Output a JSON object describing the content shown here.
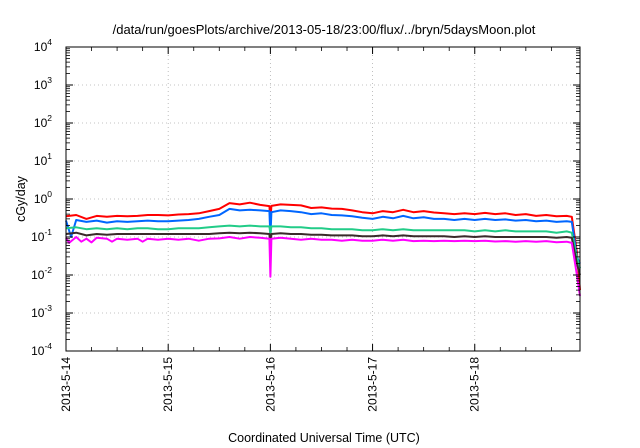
{
  "chart_data": {
    "type": "line",
    "title": "/data/run/goesPlots/archive/2013-05-18/23:00/flux/../bryn/5daysMoon.plot",
    "xlabel": "Coordinated Universal Time (UTC)",
    "ylabel": "cGy/day",
    "y_scale": "log",
    "ylim": [
      0.0001,
      10000
    ],
    "y_ticks": [
      {
        "base": "10",
        "exp": "4",
        "value": 10000
      },
      {
        "base": "10",
        "exp": "3",
        "value": 1000
      },
      {
        "base": "10",
        "exp": "2",
        "value": 100
      },
      {
        "base": "10",
        "exp": "1",
        "value": 10
      },
      {
        "base": "10",
        "exp": "0",
        "value": 1
      },
      {
        "base": "10",
        "exp": "-1",
        "value": 0.1
      },
      {
        "base": "10",
        "exp": "-2",
        "value": 0.01
      },
      {
        "base": "10",
        "exp": "-3",
        "value": 0.001
      },
      {
        "base": "10",
        "exp": "-4",
        "value": 0.0001
      }
    ],
    "x_unit": "days",
    "xlim": [
      0,
      5.03
    ],
    "x_ticks": [
      {
        "label": "2013-5-14",
        "value": 0
      },
      {
        "label": "2013-5-15",
        "value": 1
      },
      {
        "label": "2013-5-16",
        "value": 2
      },
      {
        "label": "2013-5-17",
        "value": 3
      },
      {
        "label": "2013-5-18",
        "value": 4
      }
    ],
    "grid": true,
    "series": [
      {
        "color": "#ff0000",
        "points": [
          [
            0,
            0.35
          ],
          [
            0.1,
            0.38
          ],
          [
            0.2,
            0.3
          ],
          [
            0.3,
            0.36
          ],
          [
            0.4,
            0.34
          ],
          [
            0.5,
            0.36
          ],
          [
            0.6,
            0.35
          ],
          [
            0.7,
            0.36
          ],
          [
            0.8,
            0.38
          ],
          [
            0.9,
            0.38
          ],
          [
            1.0,
            0.37
          ],
          [
            1.1,
            0.39
          ],
          [
            1.2,
            0.4
          ],
          [
            1.3,
            0.42
          ],
          [
            1.4,
            0.48
          ],
          [
            1.5,
            0.55
          ],
          [
            1.6,
            0.78
          ],
          [
            1.7,
            0.72
          ],
          [
            1.8,
            0.8
          ],
          [
            1.9,
            0.7
          ],
          [
            1.99,
            0.65
          ],
          [
            2.0,
            0.28
          ],
          [
            2.01,
            0.66
          ],
          [
            2.1,
            0.72
          ],
          [
            2.2,
            0.7
          ],
          [
            2.3,
            0.68
          ],
          [
            2.4,
            0.58
          ],
          [
            2.5,
            0.6
          ],
          [
            2.6,
            0.56
          ],
          [
            2.7,
            0.55
          ],
          [
            2.8,
            0.5
          ],
          [
            2.9,
            0.45
          ],
          [
            3.0,
            0.42
          ],
          [
            3.1,
            0.48
          ],
          [
            3.2,
            0.45
          ],
          [
            3.3,
            0.52
          ],
          [
            3.4,
            0.45
          ],
          [
            3.5,
            0.48
          ],
          [
            3.6,
            0.44
          ],
          [
            3.7,
            0.42
          ],
          [
            3.8,
            0.4
          ],
          [
            3.9,
            0.42
          ],
          [
            4.0,
            0.4
          ],
          [
            4.1,
            0.43
          ],
          [
            4.2,
            0.4
          ],
          [
            4.3,
            0.42
          ],
          [
            4.4,
            0.38
          ],
          [
            4.5,
            0.4
          ],
          [
            4.6,
            0.36
          ],
          [
            4.7,
            0.38
          ],
          [
            4.8,
            0.35
          ],
          [
            4.9,
            0.36
          ],
          [
            4.95,
            0.34
          ],
          [
            5.0,
            0.04
          ],
          [
            5.03,
            0.004
          ]
        ]
      },
      {
        "color": "#0066ff",
        "points": [
          [
            0,
            0.27
          ],
          [
            0.05,
            0.1
          ],
          [
            0.1,
            0.28
          ],
          [
            0.2,
            0.25
          ],
          [
            0.3,
            0.27
          ],
          [
            0.4,
            0.24
          ],
          [
            0.5,
            0.26
          ],
          [
            0.6,
            0.25
          ],
          [
            0.7,
            0.26
          ],
          [
            0.8,
            0.27
          ],
          [
            0.9,
            0.26
          ],
          [
            1.0,
            0.26
          ],
          [
            1.1,
            0.27
          ],
          [
            1.2,
            0.28
          ],
          [
            1.3,
            0.3
          ],
          [
            1.4,
            0.34
          ],
          [
            1.5,
            0.38
          ],
          [
            1.6,
            0.55
          ],
          [
            1.7,
            0.5
          ],
          [
            1.8,
            0.52
          ],
          [
            1.9,
            0.5
          ],
          [
            1.99,
            0.48
          ],
          [
            2.0,
            0.1
          ],
          [
            2.01,
            0.45
          ],
          [
            2.1,
            0.5
          ],
          [
            2.2,
            0.48
          ],
          [
            2.3,
            0.45
          ],
          [
            2.4,
            0.4
          ],
          [
            2.5,
            0.42
          ],
          [
            2.6,
            0.38
          ],
          [
            2.7,
            0.37
          ],
          [
            2.8,
            0.35
          ],
          [
            2.9,
            0.32
          ],
          [
            3.0,
            0.3
          ],
          [
            3.1,
            0.34
          ],
          [
            3.2,
            0.31
          ],
          [
            3.3,
            0.36
          ],
          [
            3.4,
            0.31
          ],
          [
            3.5,
            0.33
          ],
          [
            3.6,
            0.3
          ],
          [
            3.7,
            0.3
          ],
          [
            3.8,
            0.28
          ],
          [
            3.9,
            0.3
          ],
          [
            4.0,
            0.28
          ],
          [
            4.1,
            0.3
          ],
          [
            4.2,
            0.28
          ],
          [
            4.3,
            0.29
          ],
          [
            4.4,
            0.27
          ],
          [
            4.5,
            0.28
          ],
          [
            4.6,
            0.26
          ],
          [
            4.7,
            0.27
          ],
          [
            4.8,
            0.25
          ],
          [
            4.9,
            0.26
          ],
          [
            4.95,
            0.25
          ],
          [
            5.0,
            0.03
          ],
          [
            5.03,
            0.02
          ]
        ]
      },
      {
        "color": "#22cc88",
        "points": [
          [
            0,
            0.17
          ],
          [
            0.1,
            0.18
          ],
          [
            0.2,
            0.16
          ],
          [
            0.3,
            0.17
          ],
          [
            0.4,
            0.16
          ],
          [
            0.5,
            0.17
          ],
          [
            0.6,
            0.16
          ],
          [
            0.7,
            0.17
          ],
          [
            0.8,
            0.17
          ],
          [
            0.9,
            0.16
          ],
          [
            1.0,
            0.16
          ],
          [
            1.1,
            0.17
          ],
          [
            1.2,
            0.17
          ],
          [
            1.3,
            0.17
          ],
          [
            1.4,
            0.18
          ],
          [
            1.5,
            0.19
          ],
          [
            1.6,
            0.2
          ],
          [
            1.7,
            0.19
          ],
          [
            1.8,
            0.2
          ],
          [
            1.9,
            0.19
          ],
          [
            1.99,
            0.19
          ],
          [
            2.0,
            0.12
          ],
          [
            2.01,
            0.19
          ],
          [
            2.1,
            0.19
          ],
          [
            2.2,
            0.18
          ],
          [
            2.3,
            0.18
          ],
          [
            2.4,
            0.17
          ],
          [
            2.5,
            0.17
          ],
          [
            2.6,
            0.16
          ],
          [
            2.7,
            0.16
          ],
          [
            2.8,
            0.16
          ],
          [
            2.9,
            0.15
          ],
          [
            3.0,
            0.15
          ],
          [
            3.1,
            0.16
          ],
          [
            3.2,
            0.15
          ],
          [
            3.3,
            0.16
          ],
          [
            3.4,
            0.15
          ],
          [
            3.5,
            0.15
          ],
          [
            3.6,
            0.15
          ],
          [
            3.7,
            0.15
          ],
          [
            3.8,
            0.15
          ],
          [
            3.9,
            0.15
          ],
          [
            4.0,
            0.14
          ],
          [
            4.1,
            0.15
          ],
          [
            4.2,
            0.14
          ],
          [
            4.3,
            0.15
          ],
          [
            4.4,
            0.14
          ],
          [
            4.5,
            0.14
          ],
          [
            4.6,
            0.14
          ],
          [
            4.7,
            0.14
          ],
          [
            4.8,
            0.13
          ],
          [
            4.9,
            0.14
          ],
          [
            4.95,
            0.13
          ],
          [
            5.0,
            0.03
          ],
          [
            5.03,
            0.015
          ]
        ]
      },
      {
        "color": "#3a2a2a",
        "points": [
          [
            0,
            0.12
          ],
          [
            0.1,
            0.13
          ],
          [
            0.2,
            0.11
          ],
          [
            0.3,
            0.12
          ],
          [
            0.4,
            0.115
          ],
          [
            0.5,
            0.12
          ],
          [
            0.6,
            0.12
          ],
          [
            0.7,
            0.12
          ],
          [
            0.8,
            0.12
          ],
          [
            0.9,
            0.12
          ],
          [
            1.0,
            0.12
          ],
          [
            1.1,
            0.12
          ],
          [
            1.2,
            0.12
          ],
          [
            1.3,
            0.12
          ],
          [
            1.4,
            0.12
          ],
          [
            1.5,
            0.125
          ],
          [
            1.6,
            0.13
          ],
          [
            1.7,
            0.125
          ],
          [
            1.8,
            0.13
          ],
          [
            1.9,
            0.125
          ],
          [
            1.99,
            0.12
          ],
          [
            2.0,
            0.05
          ],
          [
            2.01,
            0.12
          ],
          [
            2.1,
            0.125
          ],
          [
            2.2,
            0.12
          ],
          [
            2.3,
            0.12
          ],
          [
            2.4,
            0.115
          ],
          [
            2.5,
            0.115
          ],
          [
            2.6,
            0.11
          ],
          [
            2.7,
            0.11
          ],
          [
            2.8,
            0.11
          ],
          [
            2.9,
            0.105
          ],
          [
            3.0,
            0.105
          ],
          [
            3.1,
            0.11
          ],
          [
            3.2,
            0.105
          ],
          [
            3.3,
            0.11
          ],
          [
            3.4,
            0.105
          ],
          [
            3.5,
            0.105
          ],
          [
            3.6,
            0.105
          ],
          [
            3.7,
            0.105
          ],
          [
            3.8,
            0.1
          ],
          [
            3.9,
            0.105
          ],
          [
            4.0,
            0.1
          ],
          [
            4.1,
            0.105
          ],
          [
            4.2,
            0.1
          ],
          [
            4.3,
            0.1
          ],
          [
            4.4,
            0.1
          ],
          [
            4.5,
            0.1
          ],
          [
            4.6,
            0.1
          ],
          [
            4.7,
            0.1
          ],
          [
            4.8,
            0.095
          ],
          [
            4.9,
            0.1
          ],
          [
            4.95,
            0.095
          ],
          [
            5.0,
            0.02
          ],
          [
            5.03,
            0.01
          ]
        ]
      },
      {
        "color": "#ff00ff",
        "points": [
          [
            0,
            0.095
          ],
          [
            0.03,
            0.07
          ],
          [
            0.1,
            0.1
          ],
          [
            0.15,
            0.075
          ],
          [
            0.2,
            0.09
          ],
          [
            0.25,
            0.072
          ],
          [
            0.3,
            0.095
          ],
          [
            0.4,
            0.09
          ],
          [
            0.45,
            0.075
          ],
          [
            0.5,
            0.09
          ],
          [
            0.6,
            0.085
          ],
          [
            0.7,
            0.09
          ],
          [
            0.75,
            0.075
          ],
          [
            0.8,
            0.09
          ],
          [
            0.9,
            0.085
          ],
          [
            1.0,
            0.09
          ],
          [
            1.1,
            0.085
          ],
          [
            1.2,
            0.09
          ],
          [
            1.3,
            0.08
          ],
          [
            1.4,
            0.09
          ],
          [
            1.5,
            0.092
          ],
          [
            1.6,
            0.1
          ],
          [
            1.7,
            0.09
          ],
          [
            1.8,
            0.1
          ],
          [
            1.9,
            0.095
          ],
          [
            1.99,
            0.09
          ],
          [
            2.0,
            0.009
          ],
          [
            2.01,
            0.09
          ],
          [
            2.1,
            0.095
          ],
          [
            2.2,
            0.09
          ],
          [
            2.3,
            0.085
          ],
          [
            2.4,
            0.09
          ],
          [
            2.5,
            0.085
          ],
          [
            2.6,
            0.085
          ],
          [
            2.7,
            0.08
          ],
          [
            2.8,
            0.085
          ],
          [
            2.9,
            0.08
          ],
          [
            3.0,
            0.08
          ],
          [
            3.1,
            0.085
          ],
          [
            3.2,
            0.08
          ],
          [
            3.3,
            0.085
          ],
          [
            3.4,
            0.078
          ],
          [
            3.5,
            0.08
          ],
          [
            3.6,
            0.078
          ],
          [
            3.7,
            0.08
          ],
          [
            3.8,
            0.078
          ],
          [
            3.9,
            0.08
          ],
          [
            4.0,
            0.078
          ],
          [
            4.1,
            0.08
          ],
          [
            4.2,
            0.076
          ],
          [
            4.3,
            0.078
          ],
          [
            4.4,
            0.075
          ],
          [
            4.5,
            0.078
          ],
          [
            4.6,
            0.075
          ],
          [
            4.7,
            0.078
          ],
          [
            4.8,
            0.073
          ],
          [
            4.9,
            0.075
          ],
          [
            4.95,
            0.07
          ],
          [
            5.0,
            0.01
          ],
          [
            5.03,
            0.0028
          ]
        ]
      }
    ]
  }
}
